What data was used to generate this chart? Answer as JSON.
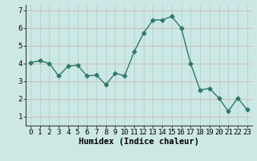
{
  "x": [
    0,
    1,
    2,
    3,
    4,
    5,
    6,
    7,
    8,
    9,
    10,
    11,
    12,
    13,
    14,
    15,
    16,
    17,
    18,
    19,
    20,
    21,
    22,
    23
  ],
  "y": [
    4.05,
    4.15,
    4.0,
    3.3,
    3.85,
    3.9,
    3.3,
    3.35,
    2.8,
    3.45,
    3.3,
    4.65,
    5.7,
    6.45,
    6.45,
    6.65,
    6.0,
    4.0,
    2.5,
    2.6,
    2.05,
    1.3,
    2.05,
    1.4
  ],
  "line_color": "#2d7a68",
  "marker": "D",
  "marker_size": 2.5,
  "background_color": "#cce8e4",
  "grid_color_h": "#d4a8a8",
  "grid_color_v": "#a8ccca",
  "xlabel": "Humidex (Indice chaleur)",
  "xlabel_fontsize": 7.5,
  "xlim": [
    -0.5,
    23.5
  ],
  "ylim": [
    0.5,
    7.3
  ],
  "yticks": [
    1,
    2,
    3,
    4,
    5,
    6,
    7
  ],
  "xticks": [
    0,
    1,
    2,
    3,
    4,
    5,
    6,
    7,
    8,
    9,
    10,
    11,
    12,
    13,
    14,
    15,
    16,
    17,
    18,
    19,
    20,
    21,
    22,
    23
  ],
  "tick_fontsize": 6.5,
  "line_width": 1.0,
  "grid_linewidth": 0.5
}
